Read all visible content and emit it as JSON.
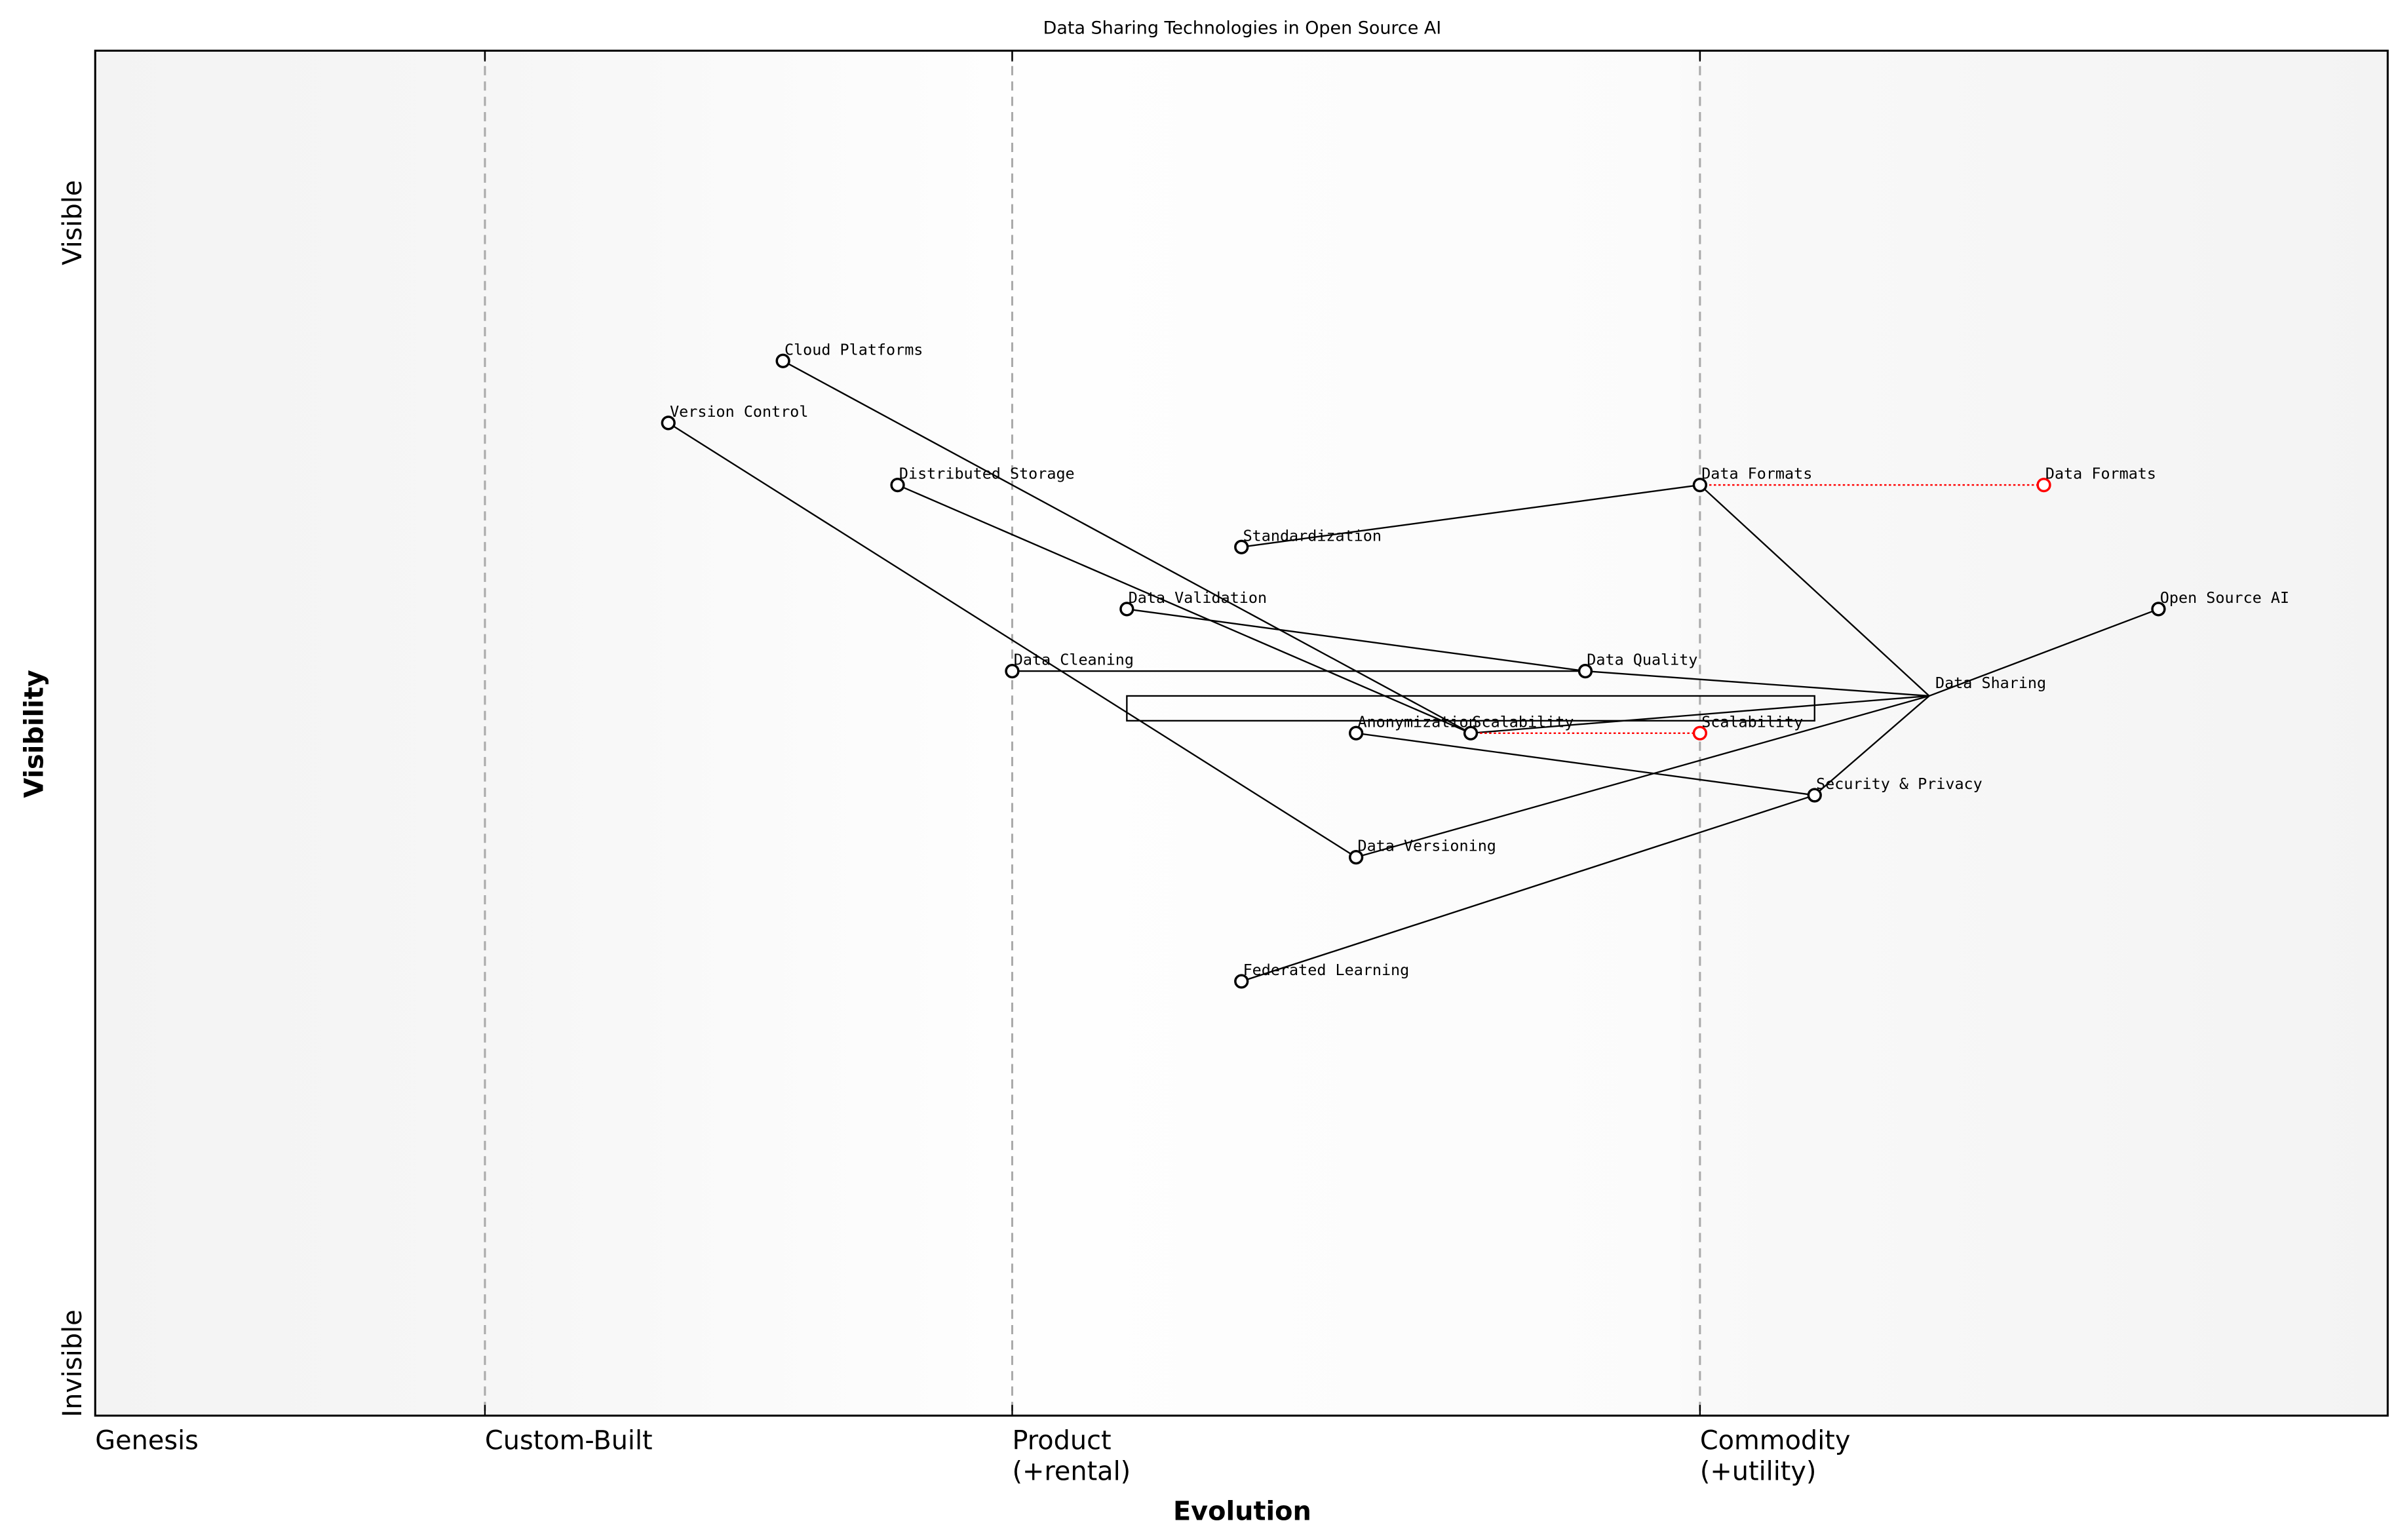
{
  "title": "Data Sharing Technologies in Open Source AI",
  "x_axis": {
    "label": "Evolution",
    "stages": [
      {
        "value": 0.0,
        "lines": [
          "Genesis"
        ]
      },
      {
        "value": 0.17,
        "lines": [
          "Custom-Built"
        ]
      },
      {
        "value": 0.4,
        "lines": [
          "Product",
          "(+rental)"
        ]
      },
      {
        "value": 0.7,
        "lines": [
          "Commodity",
          "(+utility)"
        ]
      }
    ],
    "range": [
      0,
      1
    ]
  },
  "y_axis": {
    "label": "Visibility",
    "top_label": "Visible",
    "bottom_label": "Invisible",
    "range": [
      -0.05,
      1.05
    ]
  },
  "colors": {
    "node": "#000000",
    "evolve": "#ff0000",
    "divider": "#aaaaaa"
  },
  "chart_data": {
    "type": "wardley-map",
    "components": [
      {
        "id": "osai",
        "name": "Open Source AI",
        "evolution": 0.9,
        "visibility": 0.6
      },
      {
        "id": "ds",
        "name": "Data Sharing",
        "evolution": 0.8,
        "visibility": 0.53,
        "marker": false
      },
      {
        "id": "df",
        "name": "Data Formats",
        "evolution": 0.7,
        "visibility": 0.7
      },
      {
        "id": "std",
        "name": "Standardization",
        "evolution": 0.5,
        "visibility": 0.65
      },
      {
        "id": "dval",
        "name": "Data Validation",
        "evolution": 0.45,
        "visibility": 0.6
      },
      {
        "id": "dc",
        "name": "Data Cleaning",
        "evolution": 0.4,
        "visibility": 0.55
      },
      {
        "id": "dq",
        "name": "Data Quality",
        "evolution": 0.65,
        "visibility": 0.55
      },
      {
        "id": "anon",
        "name": "Anonymization",
        "evolution": 0.55,
        "visibility": 0.5
      },
      {
        "id": "scal",
        "name": "Scalability",
        "evolution": 0.6,
        "visibility": 0.5
      },
      {
        "id": "sec",
        "name": "Security & Privacy",
        "evolution": 0.75,
        "visibility": 0.45
      },
      {
        "id": "dver",
        "name": "Data Versioning",
        "evolution": 0.55,
        "visibility": 0.4
      },
      {
        "id": "fl",
        "name": "Federated Learning",
        "evolution": 0.5,
        "visibility": 0.3
      },
      {
        "id": "cp",
        "name": "Cloud Platforms",
        "evolution": 0.3,
        "visibility": 0.8
      },
      {
        "id": "vc",
        "name": "Version Control",
        "evolution": 0.25,
        "visibility": 0.75
      },
      {
        "id": "dst",
        "name": "Distributed Storage",
        "evolution": 0.35,
        "visibility": 0.7
      }
    ],
    "links": [
      [
        "osai",
        "ds"
      ],
      [
        "ds",
        "df"
      ],
      [
        "ds",
        "dq"
      ],
      [
        "ds",
        "scal"
      ],
      [
        "ds",
        "dver"
      ],
      [
        "ds",
        "sec"
      ],
      [
        "df",
        "std"
      ],
      [
        "dq",
        "dval"
      ],
      [
        "dq",
        "dc"
      ],
      [
        "sec",
        "anon"
      ],
      [
        "sec",
        "fl"
      ],
      [
        "scal",
        "cp"
      ],
      [
        "scal",
        "dst"
      ],
      [
        "dver",
        "vc"
      ]
    ],
    "evolutions": [
      {
        "from": "df",
        "name": "Data Formats",
        "evolution": 0.85,
        "visibility": 0.7
      },
      {
        "from": "scal",
        "name": "Scalability",
        "evolution": 0.7,
        "visibility": 0.5
      }
    ],
    "annotation_box": {
      "evolution": [
        0.45,
        0.75
      ],
      "visibility": [
        0.51,
        0.53
      ]
    }
  }
}
